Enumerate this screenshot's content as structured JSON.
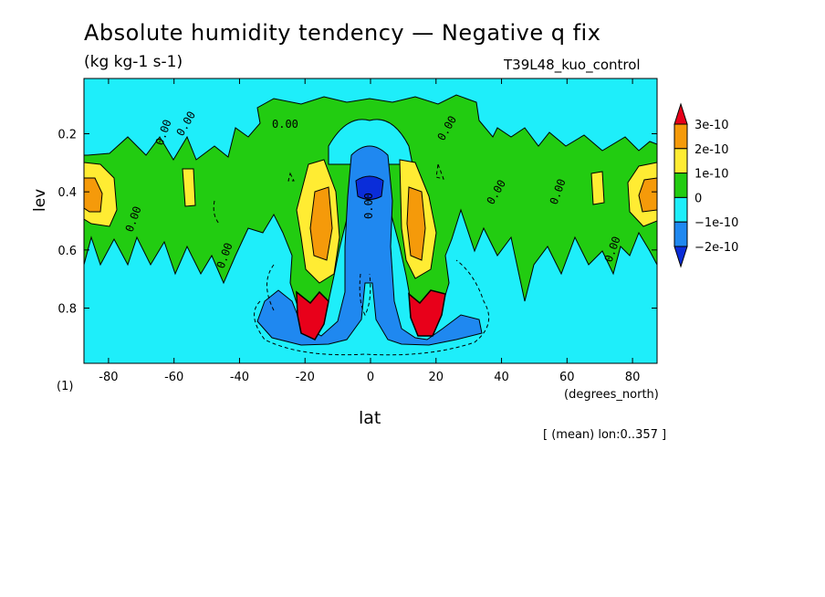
{
  "chart_data": {
    "type": "heatmap",
    "title": "Absolute humidity tendency — Negative q fix",
    "units": "(kg kg-1 s-1)",
    "run_label": "T39L48_kuo_control",
    "xlabel": "lat",
    "x_unit_label": "(degrees_north)",
    "ylabel": "lev",
    "y_unit_label": "(1)",
    "footnote": "[ (mean) lon:0..357 ]",
    "xlim": [
      -87.5,
      87.5
    ],
    "ylim": [
      0.01,
      0.99
    ],
    "y_inverted": true,
    "x_ticks": [
      -80,
      -60,
      -40,
      -20,
      0,
      20,
      40,
      60,
      80
    ],
    "y_ticks": [
      0.2,
      0.4,
      0.6,
      0.8
    ],
    "contour_label": "0.00",
    "colorbar": {
      "levels": [
        "3e-10",
        "2e-10",
        "1e-10",
        "0",
        "−1e-10",
        "−2e-10"
      ],
      "level_values": [
        3e-10,
        2e-10,
        1e-10,
        0,
        -1e-10,
        -2e-10
      ],
      "colors": [
        "#e8001a",
        "#f59a0a",
        "#ffec33",
        "#22cc11",
        "#1eeefa",
        "#1f88f0",
        "#0a2dd9"
      ],
      "extend": "both"
    },
    "background_color": "#1eeefa"
  }
}
